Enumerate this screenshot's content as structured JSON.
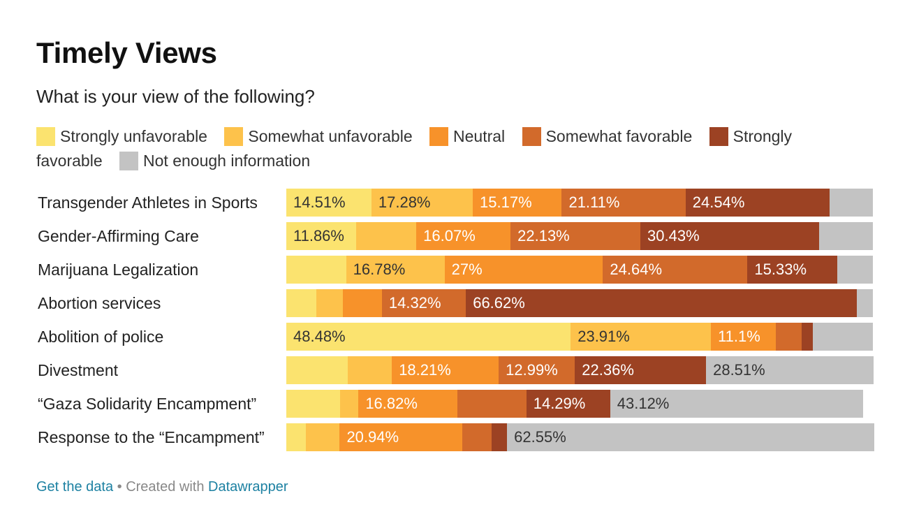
{
  "title": "Timely Views",
  "subtitle": "What is your view of the following?",
  "legend": [
    {
      "label": "Strongly unfavorable",
      "color": "#fbe36f"
    },
    {
      "label": "Somewhat unfavorable",
      "color": "#fdc24b"
    },
    {
      "label": "Neutral",
      "color": "#f7922a"
    },
    {
      "label": "Somewhat favorable",
      "color": "#d26a2b"
    },
    {
      "label": "Strongly favorable",
      "color": "#9c4223"
    },
    {
      "label": "Not enough information",
      "color": "#c3c3c3"
    }
  ],
  "chart_data": {
    "type": "bar",
    "orientation": "horizontal",
    "stacked": true,
    "title": "Timely Views",
    "subtitle": "What is your view of the following?",
    "xlim": [
      0,
      100
    ],
    "unit": "%",
    "categories": [
      "Transgender Athletes in Sports",
      "Gender-Affirming Care",
      "Marijuana Legalization",
      "Abortion services",
      "Abolition of police",
      "Divestment",
      "“Gaza Solidarity Encampment”",
      "Response to the “Encampment”"
    ],
    "series": [
      {
        "name": "Strongly unfavorable",
        "color": "#fbe36f",
        "values": [
          14.51,
          11.86,
          10.2,
          5.1,
          48.48,
          10.5,
          9.2,
          3.3
        ],
        "labels": [
          "14.51%",
          "11.86%",
          "",
          "",
          "48.48%",
          "",
          "",
          ""
        ]
      },
      {
        "name": "Somewhat unfavorable",
        "color": "#fdc24b",
        "values": [
          17.28,
          10.3,
          16.78,
          4.6,
          23.91,
          7.5,
          3.1,
          5.8
        ],
        "labels": [
          "17.28%",
          "",
          "16.78%",
          "",
          "23.91%",
          "",
          "",
          ""
        ]
      },
      {
        "name": "Neutral",
        "color": "#f7922a",
        "values": [
          15.17,
          16.07,
          27,
          6.6,
          11.1,
          18.21,
          16.82,
          20.94
        ],
        "labels": [
          "15.17%",
          "16.07%",
          "27%",
          "",
          "11.1%",
          "18.21%",
          "16.82%",
          "20.94%"
        ]
      },
      {
        "name": "Somewhat favorable",
        "color": "#d26a2b",
        "values": [
          21.11,
          22.13,
          24.64,
          14.32,
          4.4,
          12.99,
          11.8,
          5.0
        ],
        "labels": [
          "21.11%",
          "22.13%",
          "24.64%",
          "14.32%",
          "",
          "12.99%",
          "",
          ""
        ]
      },
      {
        "name": "Strongly favorable",
        "color": "#9c4223",
        "values": [
          24.54,
          30.43,
          15.33,
          66.62,
          1.9,
          22.36,
          14.29,
          2.6
        ],
        "labels": [
          "24.54%",
          "30.43%",
          "15.33%",
          "66.62%",
          "",
          "22.36%",
          "14.29%",
          ""
        ]
      },
      {
        "name": "Not enough information",
        "color": "#c3c3c3",
        "values": [
          7.39,
          9.21,
          6.05,
          2.76,
          10.21,
          28.51,
          43.12,
          62.55
        ],
        "labels": [
          "",
          "",
          "",
          "",
          "",
          "28.51%",
          "43.12%",
          "62.55%"
        ]
      }
    ]
  },
  "footer": {
    "get_data": "Get the data",
    "separator": " • Created with ",
    "tool": "Datawrapper"
  }
}
